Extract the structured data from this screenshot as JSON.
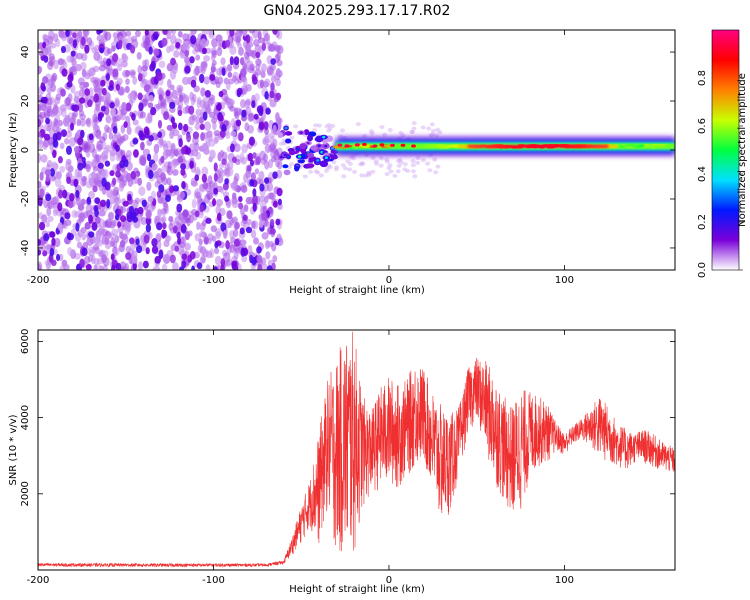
{
  "chart_data": [
    {
      "type": "heatmap",
      "title": "GN04.2025.293.17.17.R02",
      "xlabel": "Height of straight line (km)",
      "ylabel": "Frequency (Hz)",
      "xlim": [
        -200,
        163
      ],
      "ylim": [
        -49,
        49
      ],
      "x_ticks": [
        "-200",
        "-100",
        "0",
        "100"
      ],
      "y_ticks": [
        "40",
        "20",
        "0",
        "-20",
        "-40"
      ],
      "colorbar": {
        "label": "Normalized spectral amplitude",
        "range": [
          0,
          1
        ],
        "ticks": [
          "0.0",
          "0.2",
          "0.4",
          "0.6",
          "0.8"
        ],
        "colormap": [
          "#ffffff",
          "#7a00d9",
          "#0019ff",
          "#00e0ff",
          "#00ff40",
          "#c8ff00",
          "#ff8000",
          "#ff0000",
          "#ff0080"
        ]
      },
      "regions": [
        {
          "name": "noise",
          "x_range": [
            -200,
            -62
          ],
          "freq_range": [
            -49,
            49
          ],
          "amplitude_range": [
            0.0,
            0.15
          ]
        },
        {
          "name": "onset",
          "x_range": [
            -62,
            -30
          ],
          "freq_center": 0,
          "freq_halfwidth": 10,
          "amplitude_range": [
            0.1,
            0.5
          ]
        },
        {
          "name": "signal",
          "x_range": [
            -30,
            163
          ],
          "freq_center": 1.5,
          "freq_halfwidth": 4,
          "peak_amplitude": 1.0
        }
      ]
    },
    {
      "type": "line",
      "xlabel": "Height of straight line (km)",
      "ylabel": "SNR (10 * v/v)",
      "xlim": [
        -200,
        163
      ],
      "ylim": [
        0,
        6300
      ],
      "x_ticks": [
        "-200",
        "-100",
        "0",
        "100"
      ],
      "y_ticks": [
        "6000",
        "4000",
        "2000"
      ],
      "color": "#f03030",
      "envelope": {
        "x": [
          -200,
          -120,
          -70,
          -60,
          -55,
          -50,
          -45,
          -40,
          -35,
          -30,
          -25,
          -20,
          -15,
          -10,
          -5,
          0,
          5,
          10,
          15,
          20,
          25,
          30,
          35,
          40,
          45,
          50,
          55,
          60,
          65,
          70,
          75,
          80,
          85,
          90,
          95,
          100,
          105,
          110,
          115,
          120,
          125,
          130,
          135,
          140,
          145,
          150,
          155,
          163
        ],
        "low": [
          90,
          80,
          90,
          150,
          400,
          700,
          1100,
          600,
          1500,
          400,
          250,
          300,
          1600,
          2000,
          2100,
          2200,
          2100,
          2400,
          2700,
          2800,
          1900,
          1200,
          1500,
          2400,
          3600,
          3900,
          3100,
          2300,
          1800,
          1400,
          1500,
          2300,
          2700,
          2800,
          3100,
          3000,
          3300,
          3400,
          3200,
          2900,
          2800,
          2700,
          2600,
          2800,
          2800,
          2700,
          2600,
          2500
        ],
        "high": [
          180,
          170,
          170,
          250,
          900,
          1700,
          2400,
          3600,
          5000,
          5600,
          6200,
          6300,
          4600,
          4200,
          4800,
          5100,
          4900,
          5000,
          5500,
          5300,
          4700,
          4300,
          4100,
          4300,
          5300,
          5600,
          5500,
          5200,
          4600,
          4300,
          4800,
          4700,
          4600,
          4400,
          3900,
          3600,
          3800,
          4000,
          4300,
          4600,
          4300,
          3900,
          3700,
          3600,
          3700,
          3600,
          3400,
          3200
        ]
      }
    }
  ]
}
